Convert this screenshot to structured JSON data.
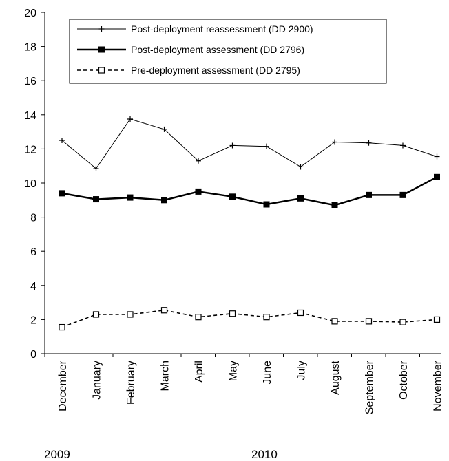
{
  "chart_data": {
    "type": "line",
    "categories": [
      "December",
      "January",
      "February",
      "March",
      "April",
      "May",
      "June",
      "July",
      "August",
      "September",
      "October",
      "November"
    ],
    "year_labels": [
      "2009",
      "2010"
    ],
    "ylim": [
      0,
      20
    ],
    "yticks": [
      "0",
      "2",
      "4",
      "6",
      "8",
      "10",
      "12",
      "14",
      "16",
      "18",
      "20"
    ],
    "legend_position": "top-center",
    "grid": false,
    "series": [
      {
        "name": "Post-deployment reassessment (DD 2900)",
        "style": "thin-solid-plus",
        "color": "#000000",
        "values": [
          12.5,
          10.85,
          13.75,
          13.15,
          11.3,
          12.2,
          12.15,
          10.95,
          12.4,
          12.35,
          12.2,
          11.55
        ]
      },
      {
        "name": "Post-deployment assessment (DD 2796)",
        "style": "thick-solid-filled-square",
        "color": "#000000",
        "values": [
          9.4,
          9.05,
          9.15,
          9.0,
          9.5,
          9.2,
          8.75,
          9.1,
          8.7,
          9.3,
          9.3,
          10.35
        ]
      },
      {
        "name": "Pre-deployment assessment (DD 2795)",
        "style": "dashed-open-square",
        "color": "#000000",
        "values": [
          1.55,
          2.3,
          2.3,
          2.55,
          2.15,
          2.35,
          2.15,
          2.4,
          1.9,
          1.9,
          1.85,
          2.0
        ]
      }
    ]
  }
}
